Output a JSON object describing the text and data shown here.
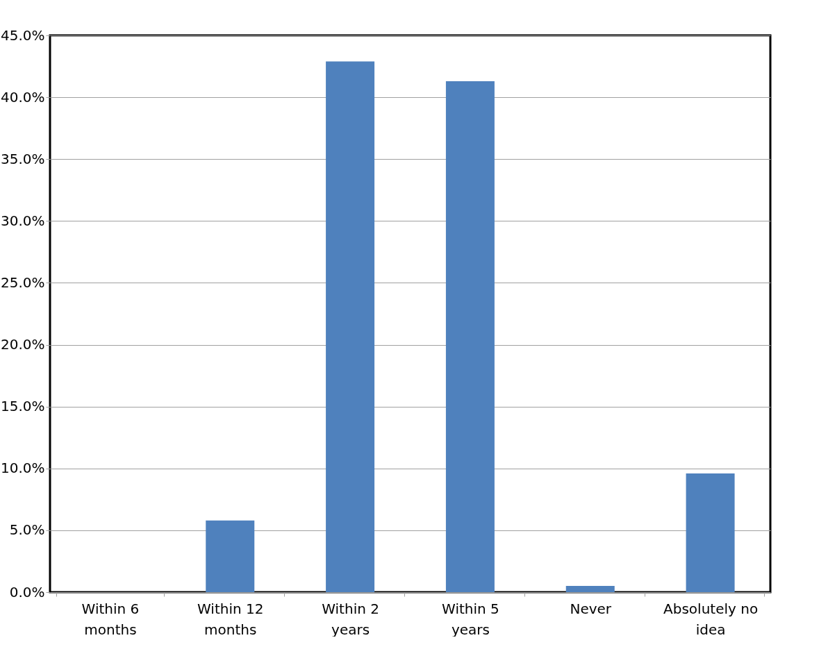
{
  "chart_data": {
    "type": "bar",
    "categories": [
      "Within 6 months",
      "Within 12 months",
      "Within 2 years",
      "Within 5 years",
      "Never",
      "Absolutely no idea"
    ],
    "values": [
      0,
      5.8,
      42.9,
      41.3,
      0.5,
      9.6
    ],
    "color": "#4f81bd",
    "ylim": [
      0,
      45
    ],
    "yticks": [
      {
        "value": 0,
        "label": "0.0%"
      },
      {
        "value": 5,
        "label": "5.0%"
      },
      {
        "value": 10,
        "label": "10.0%"
      },
      {
        "value": 15,
        "label": "15.0%"
      },
      {
        "value": 20,
        "label": "20.0%"
      },
      {
        "value": 25,
        "label": "25.0%"
      },
      {
        "value": 30,
        "label": "30.0%"
      },
      {
        "value": 35,
        "label": "35.0%"
      },
      {
        "value": 40,
        "label": "40.0%"
      },
      {
        "value": 45,
        "label": "45.0%"
      }
    ],
    "grid": "y"
  }
}
